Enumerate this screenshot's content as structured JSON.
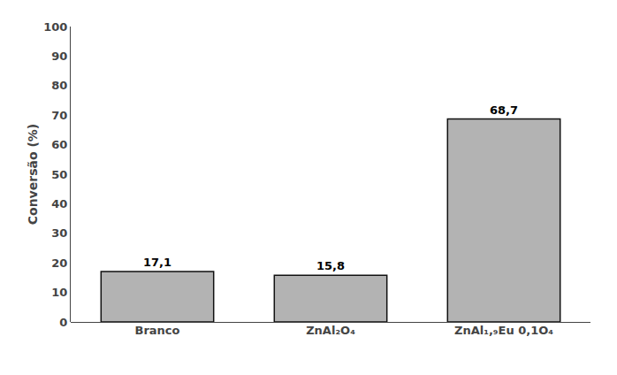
{
  "chart_data": {
    "type": "bar",
    "categories": [
      "Branco",
      "ZnAl₂O₄",
      "ZnAl₁,₉Eu 0,1O₄"
    ],
    "values": [
      17.1,
      15.8,
      68.7
    ],
    "value_labels": [
      "17,1",
      "15,8",
      "68,7"
    ],
    "data_labels": true,
    "color": "#b3b3b3",
    "ylabel": "Conversão (%)",
    "ylim": [
      0,
      100
    ],
    "yticks": [
      0,
      10,
      20,
      30,
      40,
      50,
      60,
      70,
      80,
      90,
      100
    ],
    "grid": false
  }
}
